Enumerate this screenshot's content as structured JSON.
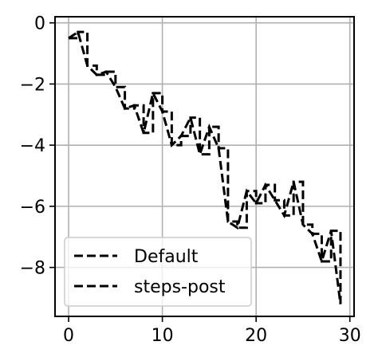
{
  "chart_data": {
    "type": "line",
    "title": "",
    "xlabel": "",
    "ylabel": "",
    "xlim": [
      -1.45,
      30.45
    ],
    "ylim": [
      -9.6,
      0.2
    ],
    "xticks": [
      0,
      10,
      20,
      30
    ],
    "yticks": [
      0,
      -2,
      -4,
      -6,
      -8
    ],
    "xtick_labels": [
      "0",
      "10",
      "20",
      "30"
    ],
    "ytick_labels": [
      "0",
      "−2",
      "−4",
      "−6",
      "−8"
    ],
    "grid": true,
    "legend": {
      "position": "lower-left"
    },
    "x": [
      0,
      1,
      2,
      3,
      4,
      5,
      6,
      7,
      8,
      9,
      10,
      11,
      12,
      13,
      14,
      15,
      16,
      17,
      18,
      19,
      20,
      21,
      22,
      23,
      24,
      25,
      26,
      27,
      28,
      29
    ],
    "series": [
      {
        "name": "Default",
        "drawstyle": "default",
        "color": "#000000",
        "linestyle": "dashed",
        "values": [
          -0.5,
          -0.3,
          -1.4,
          -1.7,
          -1.6,
          -2.1,
          -2.8,
          -2.7,
          -3.6,
          -2.3,
          -2.9,
          -4.0,
          -3.7,
          -3.1,
          -4.3,
          -3.4,
          -4.1,
          -6.5,
          -6.7,
          -5.5,
          -5.9,
          -5.3,
          -5.8,
          -6.3,
          -5.2,
          -6.6,
          -6.9,
          -7.8,
          -6.8,
          -9.2
        ]
      },
      {
        "name": "steps-post",
        "drawstyle": "steps-post",
        "color": "#000000",
        "linestyle": "dashed",
        "values": [
          -0.5,
          -0.3,
          -1.4,
          -1.7,
          -1.6,
          -2.1,
          -2.8,
          -2.7,
          -3.6,
          -2.3,
          -2.9,
          -4.0,
          -3.7,
          -3.1,
          -4.3,
          -3.4,
          -4.1,
          -6.5,
          -6.7,
          -5.5,
          -5.9,
          -5.3,
          -5.8,
          -6.3,
          -5.2,
          -6.6,
          -6.9,
          -7.8,
          -6.8,
          -9.2
        ]
      }
    ]
  }
}
